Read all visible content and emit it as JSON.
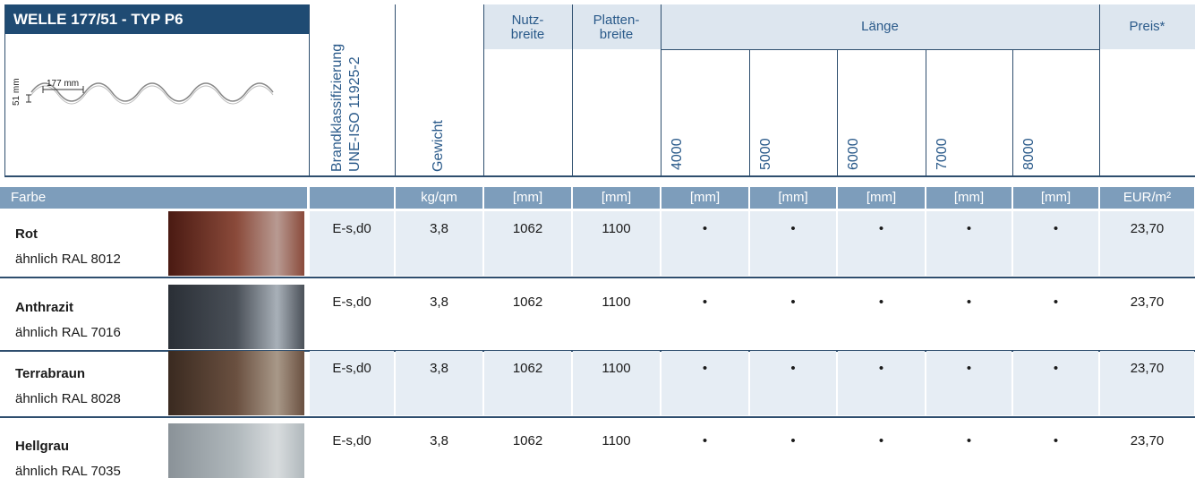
{
  "header": {
    "title": "WELLE 177/51 - TYP P6",
    "profile_width": "177 mm",
    "profile_height": "51 mm",
    "columns": {
      "fire_class": [
        "Brandklassifizierung",
        "UNE-ISO 11925-2"
      ],
      "weight": "Gewicht",
      "usable_width": [
        "Nutz-",
        "breite"
      ],
      "sheet_width": [
        "Platten-",
        "breite"
      ],
      "length": "Länge",
      "lengths": [
        "4000",
        "5000",
        "6000",
        "7000",
        "8000"
      ],
      "price": "Preis*"
    }
  },
  "units": {
    "color": "Farbe",
    "weight": "kg/qm",
    "usable_width": "[mm]",
    "sheet_width": "[mm]",
    "lengths": [
      "[mm]",
      "[mm]",
      "[mm]",
      "[mm]",
      "[mm]"
    ],
    "price": "EUR/m²"
  },
  "rows": [
    {
      "name": "Rot",
      "ral": "ähnlich RAL 8012",
      "fire_class": "E-s,d0",
      "weight": "3,8",
      "usable_width": "1062",
      "sheet_width": "1100",
      "lengths": [
        "•",
        "•",
        "•",
        "•",
        "•"
      ],
      "price": "23,70"
    },
    {
      "name": "Anthrazit",
      "ral": "ähnlich RAL 7016",
      "fire_class": "E-s,d0",
      "weight": "3,8",
      "usable_width": "1062",
      "sheet_width": "1100",
      "lengths": [
        "•",
        "•",
        "•",
        "•",
        "•"
      ],
      "price": "23,70"
    },
    {
      "name": "Terrabraun",
      "ral": "ähnlich RAL 8028",
      "fire_class": "E-s,d0",
      "weight": "3,8",
      "usable_width": "1062",
      "sheet_width": "1100",
      "lengths": [
        "•",
        "•",
        "•",
        "•",
        "•"
      ],
      "price": "23,70"
    },
    {
      "name": "Hellgrau",
      "ral": "ähnlich RAL 7035",
      "fire_class": "E-s,d0",
      "weight": "3,8",
      "usable_width": "1062",
      "sheet_width": "1100",
      "lengths": [
        "•",
        "•",
        "•",
        "•",
        "•"
      ],
      "price": "23,70"
    }
  ]
}
